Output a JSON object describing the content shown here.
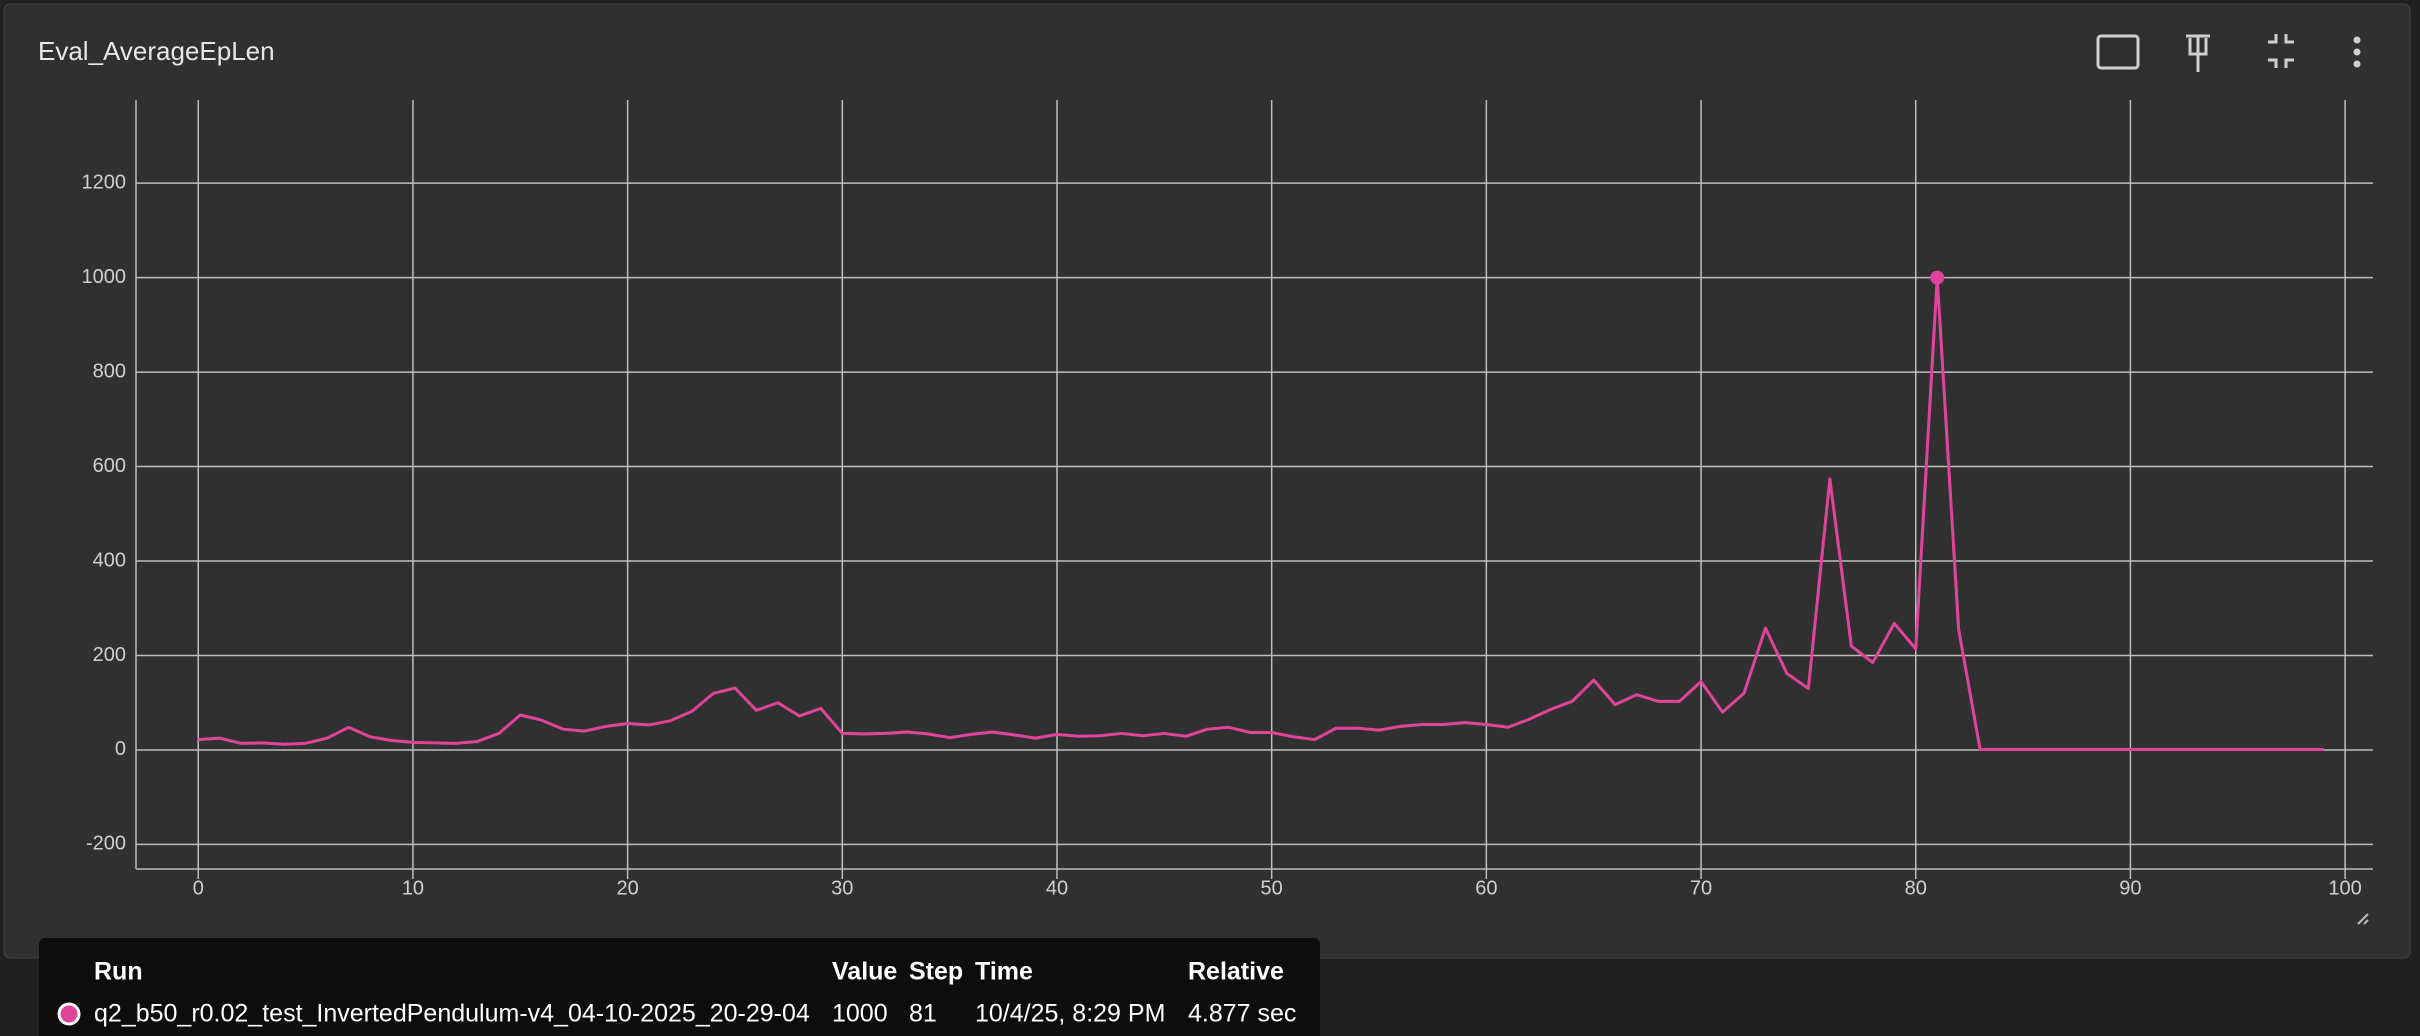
{
  "chart_data": {
    "type": "line",
    "title": "Eval_AverageEpLen",
    "x": [
      0,
      1,
      2,
      3,
      4,
      5,
      6,
      7,
      8,
      9,
      10,
      11,
      12,
      13,
      14,
      15,
      16,
      17,
      18,
      19,
      20,
      21,
      22,
      23,
      24,
      25,
      26,
      27,
      28,
      29,
      30,
      31,
      32,
      33,
      34,
      35,
      36,
      37,
      38,
      39,
      40,
      41,
      42,
      43,
      44,
      45,
      46,
      47,
      48,
      49,
      50,
      51,
      52,
      53,
      54,
      55,
      56,
      57,
      58,
      59,
      60,
      61,
      62,
      63,
      64,
      65,
      66,
      67,
      68,
      69,
      70,
      71,
      72,
      73,
      74,
      75,
      76,
      77,
      78,
      79,
      80,
      81,
      82,
      83,
      84,
      85,
      86,
      87,
      88,
      89,
      90,
      91,
      92,
      93,
      94,
      95,
      96,
      97,
      98,
      99
    ],
    "series": [
      {
        "name": "q2_b50_r0.02_test_InvertedPendulum-v4_04-10-2025_20-29-04",
        "color": "#e0449a",
        "values": [
          22,
          25,
          14,
          15,
          12,
          14,
          25,
          48,
          28,
          20,
          16,
          15,
          14,
          18,
          35,
          74,
          63,
          44,
          40,
          50,
          56,
          53,
          62,
          82,
          120,
          131,
          84,
          100,
          72,
          88,
          35,
          34,
          35,
          38,
          34,
          26,
          33,
          38,
          32,
          25,
          33,
          29,
          30,
          35,
          30,
          35,
          29,
          44,
          48,
          37,
          37,
          28,
          22,
          46,
          46,
          42,
          50,
          54,
          54,
          58,
          54,
          48,
          65,
          86,
          103,
          148,
          96,
          117,
          103,
          103,
          145,
          80,
          120,
          258,
          162,
          130,
          574,
          220,
          185,
          268,
          214,
          1000,
          255,
          1,
          1,
          1,
          1,
          1,
          1,
          1,
          1,
          1,
          1,
          1,
          1,
          1,
          1,
          1,
          1,
          1
        ]
      }
    ],
    "xlim": [
      -2.9,
      101.3
    ],
    "ylim": [
      -252,
      1376
    ],
    "xticks": [
      0,
      10,
      20,
      30,
      40,
      50,
      60,
      70,
      80,
      90,
      100
    ],
    "yticks": [
      -200,
      0,
      200,
      400,
      600,
      800,
      1000,
      1200
    ],
    "grid": true,
    "tooltip": {
      "headers": [
        "Run",
        "Value",
        "Step",
        "Time",
        "Relative"
      ],
      "value": 1000,
      "step": 81,
      "time": "10/4/25, 8:29 PM",
      "relative": "4.877 sec"
    }
  }
}
